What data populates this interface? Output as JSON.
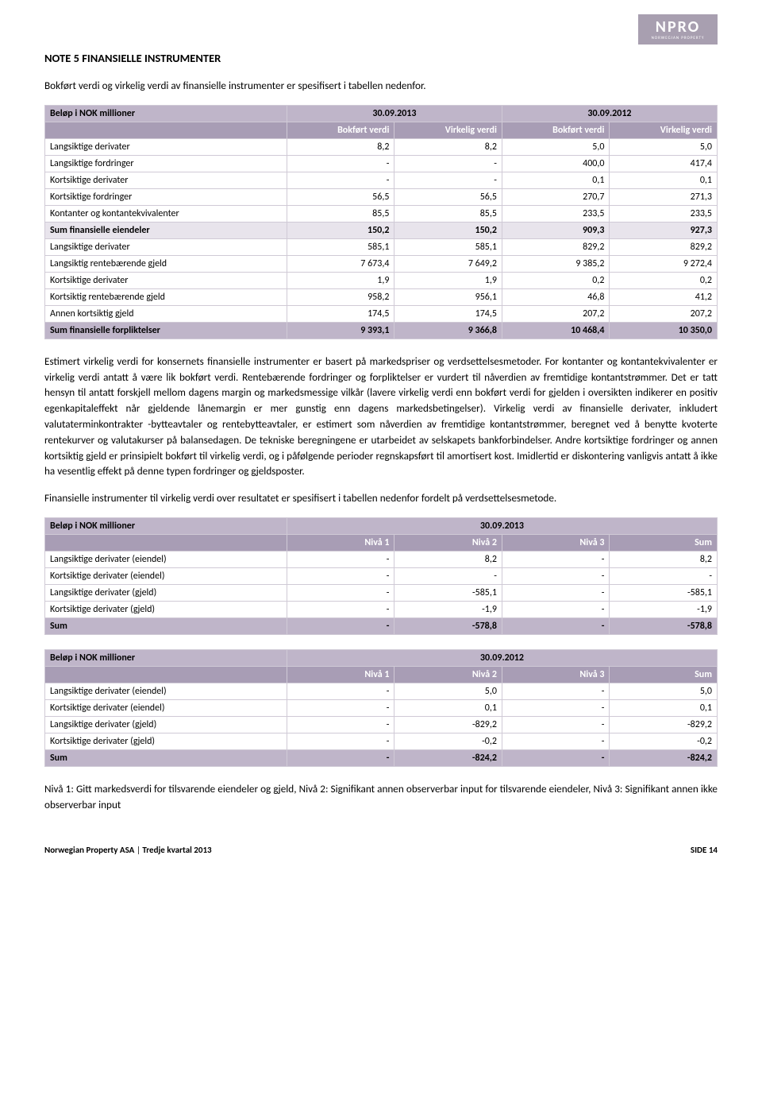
{
  "logo": {
    "main": "NPRO",
    "sub": "NORWEGIAN PROPERTY"
  },
  "note_title": "NOTE 5   FINANSIELLE INSTRUMENTER",
  "intro": "Bokført verdi og virkelig verdi av finansielle instrumenter er spesifisert i tabellen nedenfor.",
  "table1": {
    "corner": "Beløp i NOK millioner",
    "period1": "30.09.2013",
    "period2": "30.09.2012",
    "col_bv": "Bokført verdi",
    "col_vv": "Virkelig verdi",
    "rows": [
      {
        "label": "Langsiktige derivater",
        "c": [
          "8,2",
          "8,2",
          "5,0",
          "5,0"
        ],
        "sum": false
      },
      {
        "label": "Langsiktige fordringer",
        "c": [
          "-",
          "-",
          "400,0",
          "417,4"
        ],
        "sum": false
      },
      {
        "label": "Kortsiktige derivater",
        "c": [
          "-",
          "-",
          "0,1",
          "0,1"
        ],
        "sum": false
      },
      {
        "label": "Kortsiktige fordringer",
        "c": [
          "56,5",
          "56,5",
          "270,7",
          "271,3"
        ],
        "sum": false
      },
      {
        "label": "Kontanter og kontantekvivalenter",
        "c": [
          "85,5",
          "85,5",
          "233,5",
          "233,5"
        ],
        "sum": false
      },
      {
        "label": "Sum finansielle eiendeler",
        "c": [
          "150,2",
          "150,2",
          "909,3",
          "927,3"
        ],
        "sum": true
      },
      {
        "label": "Langsiktige derivater",
        "c": [
          "585,1",
          "585,1",
          "829,2",
          "829,2"
        ],
        "sum": false
      },
      {
        "label": "Langsiktig rentebærende gjeld",
        "c": [
          "7 673,4",
          "7 649,2",
          "9 385,2",
          "9 272,4"
        ],
        "sum": false
      },
      {
        "label": "Kortsiktige derivater",
        "c": [
          "1,9",
          "1,9",
          "0,2",
          "0,2"
        ],
        "sum": false
      },
      {
        "label": "Kortsiktig rentebærende gjeld",
        "c": [
          "958,2",
          "956,1",
          "46,8",
          "41,2"
        ],
        "sum": false
      },
      {
        "label": "Annen kortsiktig gjeld",
        "c": [
          "174,5",
          "174,5",
          "207,2",
          "207,2"
        ],
        "sum": false
      },
      {
        "label": "Sum finansielle forpliktelser",
        "c": [
          "9 393,1",
          "9 366,8",
          "10 468,4",
          "10 350,0"
        ],
        "final": true
      }
    ]
  },
  "para1": "Estimert virkelig verdi for konsernets finansielle instrumenter er basert på markedspriser og verdsettelsesmetoder. For kontanter og kontantekvivalenter er virkelig verdi antatt å være lik bokført verdi. Rentebærende fordringer og forpliktelser er vurdert til nåverdien av fremtidige kontantstrømmer. Det er tatt hensyn til antatt forskjell mellom dagens margin og markedsmessige vilkår (lavere virkelig verdi enn bokført verdi for gjelden i oversikten indikerer en positiv egenkapitaleffekt når gjeldende lånemargin er mer gunstig enn dagens markedsbetingelser). Virkelig verdi av finansielle derivater, inkludert valutaterminkontrakter -bytteavtaler og rentebytteavtaler, er estimert som nåverdien av fremtidige kontantstrømmer, beregnet ved å benytte kvoterte rentekurver og valutakurser på balansedagen. De tekniske beregningene er utarbeidet av selskapets bankforbindelser. Andre kortsiktige fordringer og annen kortsiktig gjeld er prinsipielt bokført til virkelig verdi, og i påfølgende perioder regnskapsført til amortisert kost. Imidlertid er diskontering vanligvis antatt å ikke ha vesentlig effekt på denne typen fordringer og gjeldsposter.",
  "para2": "Finansielle instrumenter til virkelig verdi over resultatet er spesifisert i tabellen nedenfor fordelt på verdsettelsesmetode.",
  "table2": {
    "corner": "Beløp i NOK millioner",
    "period": "30.09.2013",
    "cols": [
      "Nivå 1",
      "Nivå 2",
      "Nivå 3",
      "Sum"
    ],
    "rows": [
      {
        "label": "Langsiktige derivater (eiendel)",
        "c": [
          "-",
          "8,2",
          "-",
          "8,2"
        ]
      },
      {
        "label": "Kortsiktige derivater (eiendel)",
        "c": [
          "-",
          "-",
          "-",
          "-"
        ]
      },
      {
        "label": "Langsiktige derivater (gjeld)",
        "c": [
          "-",
          "-585,1",
          "-",
          "-585,1"
        ]
      },
      {
        "label": "Kortsiktige derivater (gjeld)",
        "c": [
          "-",
          "-1,9",
          "-",
          "-1,9"
        ]
      },
      {
        "label": "Sum",
        "c": [
          "-",
          "-578,8",
          "-",
          "-578,8"
        ],
        "final": true
      }
    ]
  },
  "table3": {
    "corner": "Beløp i NOK millioner",
    "period": "30.09.2012",
    "cols": [
      "Nivå 1",
      "Nivå 2",
      "Nivå 3",
      "Sum"
    ],
    "rows": [
      {
        "label": "Langsiktige derivater (eiendel)",
        "c": [
          "-",
          "5,0",
          "-",
          "5,0"
        ]
      },
      {
        "label": "Kortsiktige derivater (eiendel)",
        "c": [
          "-",
          "0,1",
          "-",
          "0,1"
        ]
      },
      {
        "label": "Langsiktige derivater (gjeld)",
        "c": [
          "-",
          "-829,2",
          "-",
          "-829,2"
        ]
      },
      {
        "label": "Kortsiktige derivater (gjeld)",
        "c": [
          "-",
          "-0,2",
          "-",
          "-0,2"
        ]
      },
      {
        "label": "Sum",
        "c": [
          "-",
          "-824,2",
          "-",
          "-824,2"
        ],
        "final": true
      }
    ]
  },
  "level_note": "Nivå 1: Gitt markedsverdi for tilsvarende eiendeler og gjeld, Nivå 2: Signifikant annen observerbar input for tilsvarende eiendeler, Nivå 3: Signifikant annen ikke observerbar input",
  "footer": {
    "company": "Norwegian Property ASA",
    "sep": " | ",
    "period": "Tredje kvartal 2013",
    "page": "SIDE 14"
  }
}
